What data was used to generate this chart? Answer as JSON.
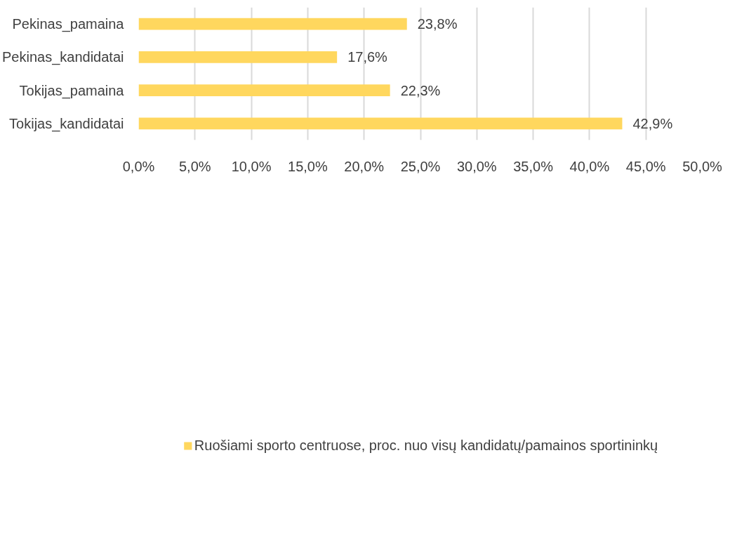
{
  "chart_data": {
    "type": "bar",
    "orientation": "horizontal",
    "categories": [
      "Pekinas_pamaina",
      "Pekinas_kandidatai",
      "Tokijas_pamaina",
      "Tokijas_kandidatai"
    ],
    "series": [
      {
        "name": "Ruošiami sporto centruose, proc. nuo visų kandidatų/pamainos sportininkų",
        "color": "#ffd75e",
        "values": [
          23.8,
          17.6,
          22.3,
          42.9
        ],
        "value_labels": [
          "23,8%",
          "17,6%",
          "22,3%",
          "42,9%"
        ]
      }
    ],
    "xlim": [
      0,
      50
    ],
    "xticks": [
      {
        "value": 0,
        "label": "0,0%"
      },
      {
        "value": 5,
        "label": "5,0%"
      },
      {
        "value": 10,
        "label": "10,0%"
      },
      {
        "value": 15,
        "label": "15,0%"
      },
      {
        "value": 20,
        "label": "20,0%"
      },
      {
        "value": 25,
        "label": "25,0%"
      },
      {
        "value": 30,
        "label": "30,0%"
      },
      {
        "value": 35,
        "label": "35,0%"
      },
      {
        "value": 40,
        "label": "40,0%"
      },
      {
        "value": 45,
        "label": "45,0%"
      },
      {
        "value": 50,
        "label": "50,0%"
      }
    ],
    "grid": "x",
    "legend": "bottom"
  }
}
